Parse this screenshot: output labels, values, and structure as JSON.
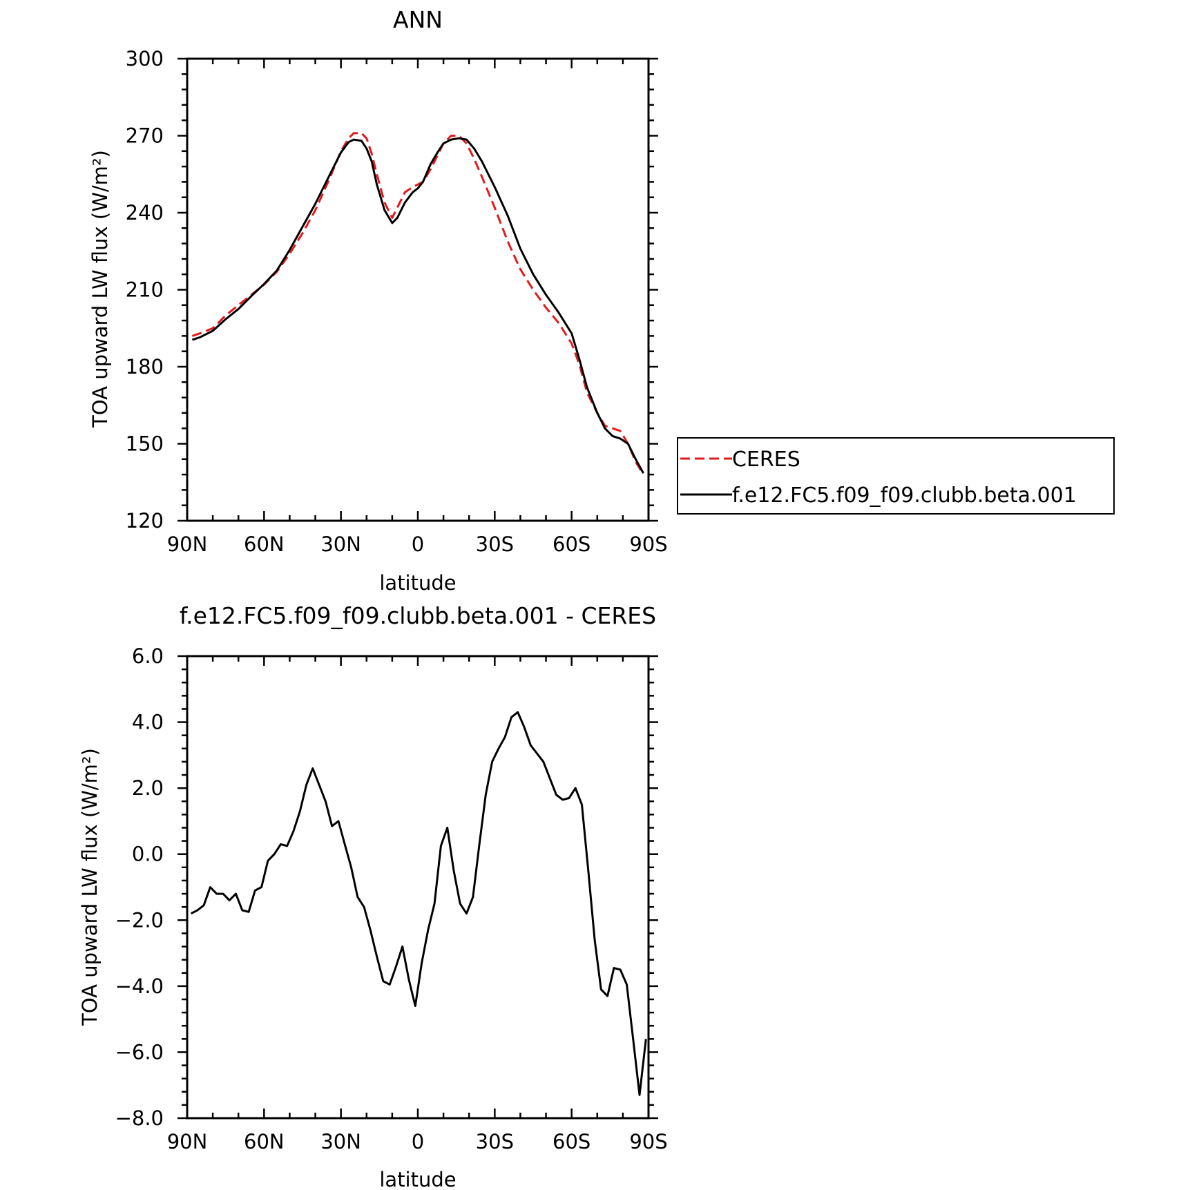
{
  "chart_data": [
    {
      "type": "line",
      "title": "ANN",
      "xlabel": "latitude",
      "ylabel": "TOA upward LW flux (W/m²)",
      "xlim": [
        90,
        -90
      ],
      "ylim": [
        120,
        300
      ],
      "xticks": [
        90,
        60,
        30,
        0,
        -30,
        -60,
        -90
      ],
      "xtick_labels": [
        "90N",
        "60N",
        "30N",
        "0",
        "30S",
        "60S",
        "90S"
      ],
      "yticks": [
        120,
        150,
        180,
        210,
        240,
        270,
        300
      ],
      "ytick_labels": [
        "120",
        "150",
        "180",
        "210",
        "240",
        "270",
        "300"
      ],
      "grid": false,
      "legend": {
        "placement": "right",
        "entries": [
          "CERES",
          "f.e12.FC5.f09_f09.clubb.beta.001"
        ]
      },
      "series": [
        {
          "name": "CERES",
          "color": "#e31a1c",
          "style": "dashed",
          "x": [
            88,
            85,
            80,
            75,
            70,
            65,
            60,
            55,
            50,
            45,
            40,
            35,
            30,
            27,
            25,
            22,
            20,
            18,
            16,
            13,
            10,
            8,
            5,
            2,
            0,
            -2,
            -5,
            -8,
            -10,
            -13,
            -16,
            -19,
            -22,
            -25,
            -30,
            -35,
            -40,
            -45,
            -50,
            -55,
            -60,
            -63,
            -66,
            -70,
            -73,
            -76,
            -79,
            -82,
            -85,
            -88
          ],
          "y": [
            192,
            193,
            195,
            200,
            204,
            208,
            212,
            217,
            224,
            232,
            241,
            252,
            264,
            269,
            271,
            271,
            269,
            263,
            255,
            244,
            238,
            242,
            248,
            250,
            251,
            252,
            257,
            263,
            267,
            270,
            270,
            267,
            261,
            254,
            242,
            229,
            218,
            210,
            203,
            197,
            189,
            181,
            170,
            162,
            157,
            156,
            155,
            150,
            143,
            138
          ]
        },
        {
          "name": "f.e12.FC5.f09_f09.clubb.beta.001",
          "color": "#000000",
          "style": "solid",
          "x": [
            88,
            85,
            80,
            75,
            70,
            65,
            60,
            55,
            50,
            45,
            40,
            35,
            30,
            27,
            25,
            22,
            20,
            18,
            16,
            13,
            10,
            8,
            5,
            2,
            0,
            -2,
            -5,
            -8,
            -10,
            -13,
            -16,
            -19,
            -22,
            -25,
            -30,
            -35,
            -40,
            -45,
            -50,
            -55,
            -60,
            -63,
            -66,
            -70,
            -73,
            -76,
            -79,
            -82,
            -85,
            -88
          ],
          "y": [
            190.5,
            191.5,
            194,
            198.5,
            202.5,
            207.5,
            212.2,
            217.5,
            225.5,
            234.5,
            243.5,
            253.5,
            263.5,
            267.5,
            268.5,
            268,
            265,
            260,
            251,
            241,
            236,
            238,
            244,
            248,
            249.5,
            252,
            259,
            264,
            267,
            268.5,
            269,
            268.5,
            265,
            260,
            250,
            239,
            226,
            216,
            208,
            201,
            193,
            183,
            172,
            162,
            156,
            153,
            152,
            150,
            144,
            138.5
          ]
        }
      ]
    },
    {
      "type": "line",
      "title": "f.e12.FC5.f09_f09.clubb.beta.001 - CERES",
      "xlabel": "latitude",
      "ylabel": "TOA upward LW flux (W/m²)",
      "xlim": [
        90,
        -90
      ],
      "ylim": [
        -8.0,
        6.0
      ],
      "xticks": [
        90,
        60,
        30,
        0,
        -30,
        -60,
        -90
      ],
      "xtick_labels": [
        "90N",
        "60N",
        "30N",
        "0",
        "30S",
        "60S",
        "90S"
      ],
      "yticks": [
        -8.0,
        -6.0,
        -4.0,
        -2.0,
        0.0,
        2.0,
        4.0,
        6.0
      ],
      "ytick_labels": [
        "−8.0",
        "−6.0",
        "−4.0",
        "−2.0",
        "0.0",
        "2.0",
        "4.0",
        "6.0"
      ],
      "grid": false,
      "series": [
        {
          "color": "#000000",
          "style": "solid",
          "x": [
            88.5,
            86,
            83.5,
            81,
            78.5,
            76,
            73.5,
            71,
            68.5,
            66,
            63.5,
            61,
            58.5,
            56,
            53.5,
            51,
            48.5,
            46,
            43.5,
            41,
            38.5,
            36,
            33.5,
            31,
            28.5,
            26,
            23.5,
            21,
            18.5,
            16,
            13.5,
            11,
            8.5,
            6,
            3.5,
            1,
            -1.5,
            -4,
            -6.5,
            -9,
            -11.5,
            -14,
            -16.5,
            -19,
            -21.5,
            -24,
            -26.5,
            -29,
            -31.5,
            -34,
            -36.5,
            -39,
            -41.5,
            -44,
            -46.5,
            -49,
            -51.5,
            -54,
            -56.5,
            -59,
            -61.5,
            -64,
            -66.5,
            -69,
            -71.5,
            -74,
            -76.5,
            -79,
            -81.5,
            -84,
            -86.5,
            -89
          ],
          "y": [
            -1.8,
            -1.7,
            -1.55,
            -1.0,
            -1.2,
            -1.2,
            -1.4,
            -1.2,
            -1.7,
            -1.75,
            -1.1,
            -1.0,
            -0.2,
            0.0,
            0.3,
            0.25,
            0.7,
            1.3,
            2.1,
            2.6,
            2.1,
            1.6,
            0.85,
            1.0,
            0.3,
            -0.4,
            -1.3,
            -1.6,
            -2.3,
            -3.1,
            -3.85,
            -3.95,
            -3.4,
            -2.8,
            -3.8,
            -4.6,
            -3.3,
            -2.3,
            -1.5,
            0.25,
            0.8,
            -0.5,
            -1.5,
            -1.8,
            -1.3,
            0.3,
            1.8,
            2.8,
            3.2,
            3.55,
            4.15,
            4.3,
            3.85,
            3.3,
            3.05,
            2.8,
            2.3,
            1.8,
            1.65,
            1.7,
            2.0,
            1.5,
            -0.5,
            -2.6,
            -4.1,
            -4.3,
            -3.45,
            -3.5,
            -3.95,
            -5.6,
            -7.3,
            -5.6
          ]
        }
      ]
    }
  ]
}
